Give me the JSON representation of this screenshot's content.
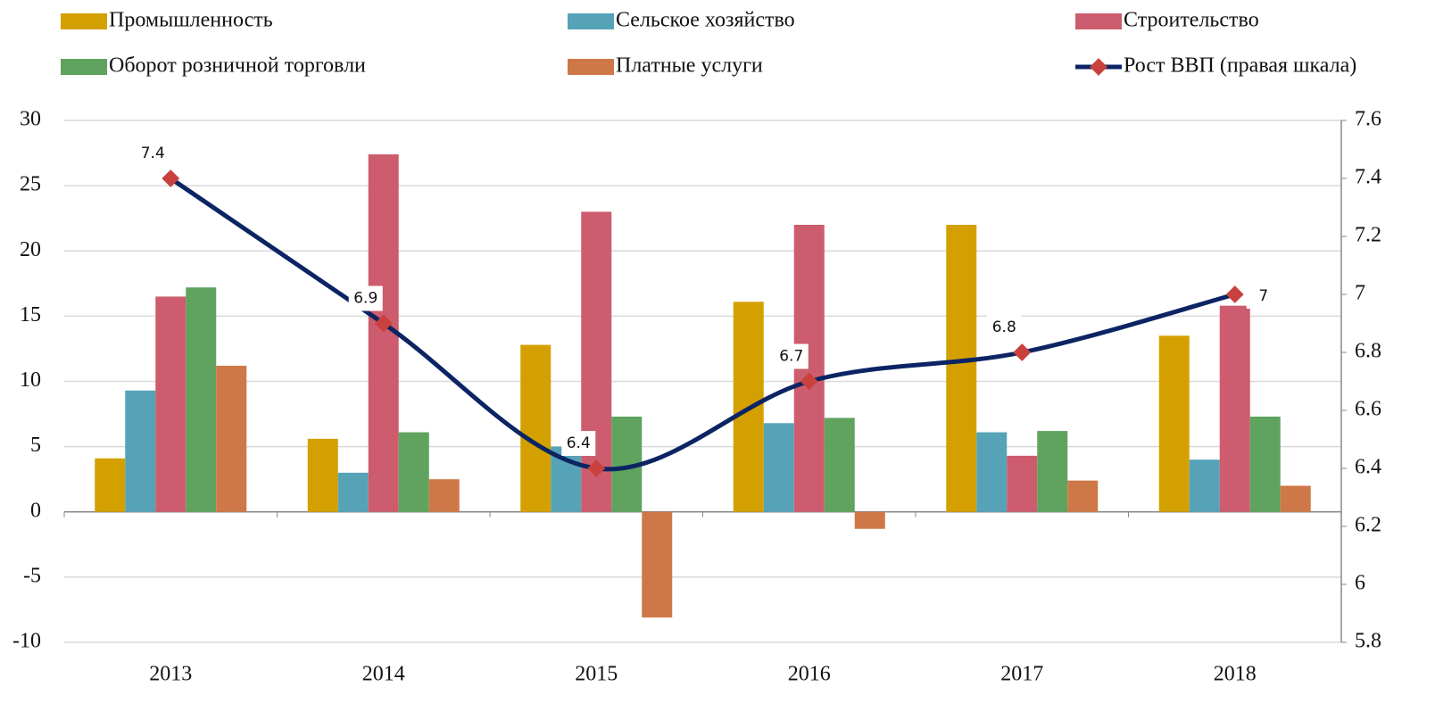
{
  "chart_data": {
    "type": "bar",
    "categories": [
      "2013",
      "2014",
      "2015",
      "2016",
      "2017",
      "2018"
    ],
    "series": [
      {
        "name": "Промышленность",
        "color": "#D4A000",
        "values": [
          4.1,
          5.6,
          12.8,
          16.1,
          22.0,
          13.5
        ]
      },
      {
        "name": "Сельское хозяйство",
        "color": "#56A3B8",
        "values": [
          9.3,
          3.0,
          5.0,
          6.8,
          6.1,
          4.0
        ]
      },
      {
        "name": "Строительство",
        "color": "#CD5C6E",
        "values": [
          16.5,
          27.4,
          23.0,
          22.0,
          4.3,
          15.8
        ]
      },
      {
        "name": "Оборот розничной торговли",
        "color": "#5FA35F",
        "values": [
          17.2,
          6.1,
          7.3,
          7.2,
          6.2,
          7.3
        ]
      },
      {
        "name": "Платные услуги",
        "color": "#CF7847",
        "values": [
          11.2,
          2.5,
          -8.1,
          -1.3,
          2.4,
          2.0
        ]
      },
      {
        "name": "Рост ВВП (правая шкала)",
        "type": "line",
        "axis": "y2",
        "color": "#0B2463",
        "marker_color": "#C8413C",
        "values": [
          7.4,
          6.9,
          6.4,
          6.7,
          6.8,
          7
        ]
      }
    ],
    "ylim": [
      -10,
      30
    ],
    "yticks": [
      -10,
      -5,
      0,
      5,
      10,
      15,
      20,
      25,
      30
    ],
    "y2lim": [
      5.8,
      7.6
    ],
    "y2ticks": [
      5.8,
      6,
      6.2,
      6.4,
      6.6,
      6.8,
      7,
      7.2,
      7.4,
      7.6
    ],
    "grid": true
  }
}
